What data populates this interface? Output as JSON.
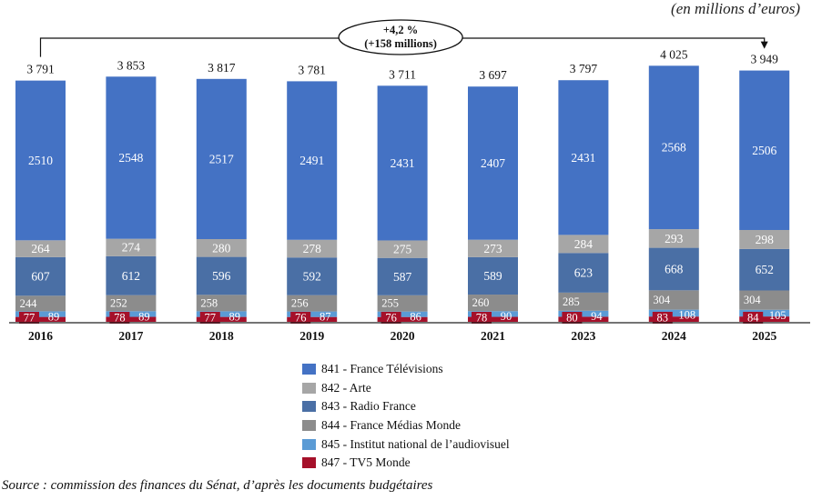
{
  "unit_note": "(en millions d’euros)",
  "source": "Source : commission des finances du Sénat, d’après les documents budgétaires",
  "chart_data": {
    "type": "bar",
    "stacked": true,
    "categories": [
      "2016",
      "2017",
      "2018",
      "2019",
      "2020",
      "2021",
      "2023",
      "2024",
      "2025"
    ],
    "totals": [
      "3 791",
      "3 853",
      "3 817",
      "3 781",
      "3 711",
      "3 697",
      "3 797",
      "4 025",
      "3 949"
    ],
    "series": [
      {
        "name": "847 - TV5 Monde",
        "color": "#a5102a",
        "values": [
          77,
          78,
          77,
          76,
          76,
          78,
          80,
          83,
          84
        ]
      },
      {
        "name": "845 - Institut national de l’audiovisuel",
        "color": "#5b9bd5",
        "values": [
          89,
          89,
          89,
          87,
          86,
          90,
          94,
          108,
          105
        ]
      },
      {
        "name": "844 - France Médias Monde",
        "color": "#8c8c8c",
        "values": [
          244,
          252,
          258,
          256,
          255,
          260,
          285,
          304,
          304
        ]
      },
      {
        "name": "843 - Radio France",
        "color": "#4a6fa5",
        "values": [
          607,
          612,
          596,
          592,
          587,
          589,
          623,
          668,
          652
        ]
      },
      {
        "name": "842 - Arte",
        "color": "#a6a6a6",
        "values": [
          264,
          274,
          280,
          278,
          275,
          273,
          284,
          293,
          298
        ]
      },
      {
        "name": "841 - France Télévisions",
        "color": "#4472c4",
        "values": [
          2510,
          2548,
          2517,
          2491,
          2431,
          2407,
          2431,
          2568,
          2506
        ]
      }
    ],
    "legend_order": [
      5,
      4,
      3,
      2,
      1,
      0
    ],
    "annotation": {
      "line1": "+4,2 %",
      "line2": "(+158 millions)",
      "from": "2016",
      "to": "2025"
    },
    "legend_position": "bottom-center",
    "grid": false
  }
}
